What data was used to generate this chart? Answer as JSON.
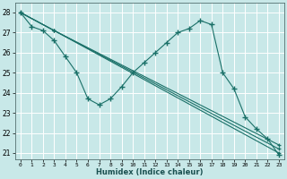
{
  "xlabel": "Humidex (Indice chaleur)",
  "background_color": "#c8e8e8",
  "grid_color": "#e8f8f8",
  "line_color": "#1a7068",
  "xlim": [
    -0.5,
    23.5
  ],
  "ylim": [
    20.7,
    28.5
  ],
  "yticks": [
    21,
    22,
    23,
    24,
    25,
    26,
    27,
    28
  ],
  "xticks": [
    0,
    1,
    2,
    3,
    4,
    5,
    6,
    7,
    8,
    9,
    10,
    11,
    12,
    13,
    14,
    15,
    16,
    17,
    18,
    19,
    20,
    21,
    22,
    23
  ],
  "line_zigzag": {
    "x": [
      0,
      1,
      2,
      3,
      4,
      5,
      6,
      7,
      8,
      9,
      10,
      11,
      12,
      13,
      14,
      15,
      16,
      17,
      18,
      19,
      20,
      21,
      22,
      23
    ],
    "y": [
      28.0,
      27.3,
      27.1,
      26.6,
      25.8,
      25.0,
      23.7,
      23.4,
      23.7,
      24.3,
      25.0,
      25.5,
      26.0,
      26.5,
      27.0,
      27.2,
      27.6,
      27.4,
      25.0,
      24.2,
      22.8,
      22.2,
      21.7,
      20.9
    ]
  },
  "lines_straight": [
    {
      "x": [
        0,
        3,
        23
      ],
      "y": [
        28.0,
        27.1,
        21.0
      ]
    },
    {
      "x": [
        0,
        3,
        23
      ],
      "y": [
        28.0,
        27.1,
        21.2
      ]
    },
    {
      "x": [
        0,
        3,
        23
      ],
      "y": [
        28.0,
        27.1,
        21.4
      ]
    }
  ]
}
